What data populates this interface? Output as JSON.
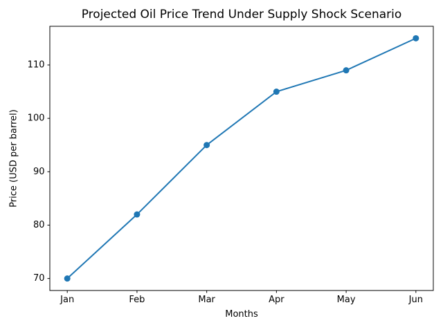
{
  "chart_data": {
    "type": "line",
    "title": "Projected Oil Price Trend Under Supply Shock Scenario",
    "xlabel": "Months",
    "ylabel": "Price (USD per barrel)",
    "categories": [
      "Jan",
      "Feb",
      "Mar",
      "Apr",
      "May",
      "Jun"
    ],
    "values": [
      70,
      82,
      95,
      105,
      109,
      115
    ],
    "yticks": [
      70,
      80,
      90,
      100,
      110
    ],
    "ylim": [
      67.75,
      117.25
    ],
    "xlim": [
      -0.25,
      5.25
    ],
    "line_color": "#1f77b4",
    "marker": "circle",
    "marker_color": "#1f77b4",
    "grid": false,
    "legend_position": "none",
    "background_color": "#ffffff",
    "spine_color": "#000000"
  }
}
